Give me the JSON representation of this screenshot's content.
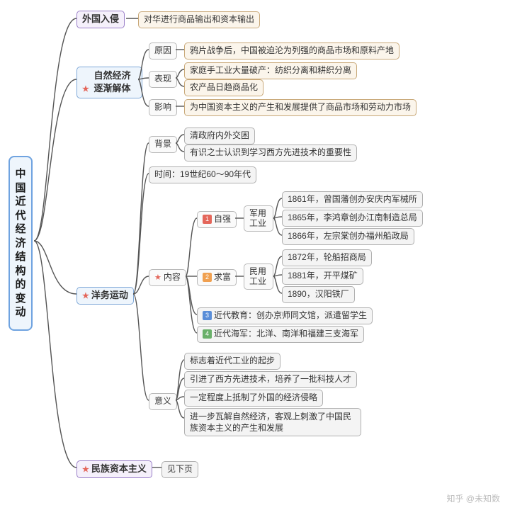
{
  "root": "中国近代经济结构的变动",
  "b1": {
    "title": "外国入侵",
    "desc": "对华进行商品输出和资本输出"
  },
  "b2": {
    "title": "自然经济逐渐解体",
    "cause_k": "原因",
    "cause_v": "鸦片战争后，中国被迫沦为列强的商品市场和原料产地",
    "mani_k": "表现",
    "m1": "家庭手工业大量破产：纺织分离和耕织分离",
    "m2": "农产品日趋商品化",
    "eff_k": "影响",
    "eff_v": "为中国资本主义的产生和发展提供了商品市场和劳动力市场"
  },
  "b3": {
    "title": "洋务运动",
    "bg_k": "背景",
    "bg1": "清政府内外交困",
    "bg2": "有识之士认识到学习西方先进技术的重要性",
    "time": "时间：19世纪60～90年代",
    "ct_k": "内容",
    "zq": "自强",
    "jy": "军用工业",
    "jy1": "1861年，曾国藩创办安庆内军械所",
    "jy2": "1865年，李鸿章创办江南制造总局",
    "jy3": "1866年，左宗棠创办福州船政局",
    "qf": "求富",
    "my": "民用工业",
    "my1": "1872年，轮船招商局",
    "my2": "1881年，开平煤矿",
    "my3": "1890，汉阳铁厂",
    "edu": "近代教育：创办京师同文馆，派遣留学生",
    "navy": "近代海军：北洋、南洋和福建三支海军",
    "sig_k": "意义",
    "s1": "标志着近代工业的起步",
    "s2": "引进了西方先进技术，培养了一批科技人才",
    "s3": "一定程度上抵制了外国的经济侵略",
    "s4": "进一步瓦解自然经济，客观上刺激了中国民族资本主义的产生和发展"
  },
  "b4": {
    "title": "民族资本主义",
    "note": "见下页"
  },
  "watermark": "知乎 @未知数",
  "colors": {
    "line": "#555555"
  }
}
